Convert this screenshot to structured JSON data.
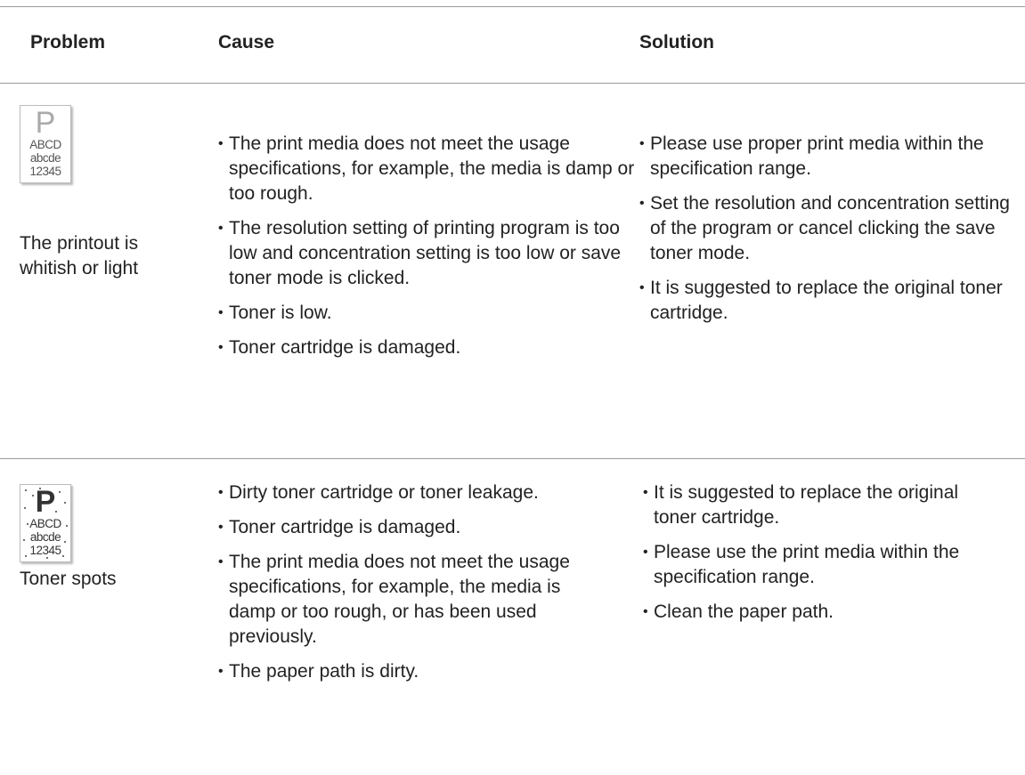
{
  "table": {
    "header": [
      "Problem",
      "Cause",
      "Solution"
    ],
    "rows": [
      {
        "sample": [
          "P",
          "ABCD",
          "abcde",
          "12345"
        ],
        "problem": "The printout is whitish or light",
        "cause": [
          "The print media does not meet the usage specifications, for example, the media is damp or too rough.",
          "The resolution setting of printing program is too low and concentration setting is too low or save toner mode is clicked.",
          "Toner is low.",
          "Toner cartridge is damaged."
        ],
        "solution": [
          "Please use proper print media within the specification range.",
          "Set the resolution and concentration setting of the program or cancel clicking the save toner mode.",
          "It is suggested to replace the original toner cartridge."
        ]
      },
      {
        "sample": [
          "P",
          "ABCD",
          "abcde",
          "12345"
        ],
        "problem": "Toner spots",
        "cause": [
          "Dirty toner cartridge or toner leakage.",
          "Toner cartridge is damaged.",
          "The print media does not meet the usage specifications, for example, the media is damp or too rough, or has been used previously.",
          "The paper path is dirty."
        ],
        "solution": [
          "It is suggested to replace the original toner cartridge.",
          "Please use the print media within the specification range.",
          "Clean the paper path."
        ]
      }
    ]
  }
}
